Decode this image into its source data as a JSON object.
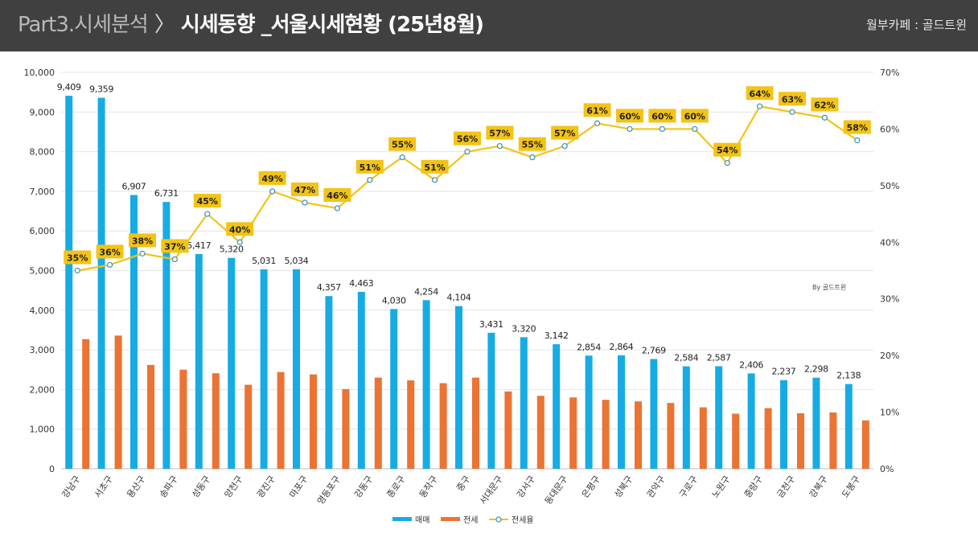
{
  "header": {
    "prefix": "Part3.시세분석",
    "separator": "〉",
    "title": "시세동향 _서울시세현황 (25년8월)",
    "source": "월부카페 : 골드트윈"
  },
  "colors": {
    "header_bg": "#404040",
    "sale": "#16ACE3",
    "jeonse": "#EB7333",
    "ratio_line": "#F3C316",
    "ratio_label_bg": "#F3C316",
    "grid": "#e4e4e4"
  },
  "chart_data": {
    "type": "bar",
    "categories": [
      "강남구",
      "서초구",
      "용산구",
      "송파구",
      "성동구",
      "양천구",
      "광진구",
      "마포구",
      "영등포구",
      "강동구",
      "종로구",
      "동작구",
      "중구",
      "서대문구",
      "강서구",
      "동대문구",
      "은평구",
      "성북구",
      "관악구",
      "구로구",
      "노원구",
      "중랑구",
      "금천구",
      "강북구",
      "도봉구"
    ],
    "series": [
      {
        "name": "매매",
        "type": "bar",
        "axis": "left",
        "color": "#16ACE3",
        "values": [
          9409,
          9359,
          6907,
          6731,
          5417,
          5320,
          5031,
          5034,
          4357,
          4463,
          4030,
          4254,
          4104,
          3431,
          3320,
          3142,
          2854,
          2864,
          2769,
          2584,
          2587,
          2406,
          2237,
          2298,
          2138
        ],
        "labels": [
          "9,409",
          "9,359",
          "6,907",
          "6,731",
          "5,417",
          "5,320",
          "5,031",
          "5,034",
          "4,357",
          "4,463",
          "4,030",
          "4,254",
          "4,104",
          "3,431",
          "3,320",
          "3,142",
          "2,854",
          "2,864",
          "2,769",
          "2,584",
          "2,587",
          "2,406",
          "2,237",
          "2,298",
          "2,138"
        ]
      },
      {
        "name": "전세",
        "type": "bar",
        "axis": "left",
        "color": "#EB7333",
        "values": [
          3270,
          3360,
          2620,
          2500,
          2410,
          2120,
          2440,
          2380,
          2010,
          2300,
          2230,
          2160,
          2300,
          1950,
          1840,
          1800,
          1740,
          1700,
          1660,
          1550,
          1390,
          1530,
          1400,
          1420,
          1220
        ]
      },
      {
        "name": "전세율",
        "type": "line",
        "axis": "right",
        "color": "#F3C316",
        "values": [
          35,
          36,
          38,
          37,
          45,
          40,
          49,
          47,
          46,
          51,
          55,
          51,
          56,
          57,
          55,
          57,
          61,
          60,
          60,
          60,
          54,
          64,
          63,
          62,
          58
        ],
        "labels": [
          "35%",
          "36%",
          "38%",
          "37%",
          "45%",
          "40%",
          "49%",
          "47%",
          "46%",
          "51%",
          "55%",
          "51%",
          "56%",
          "57%",
          "55%",
          "57%",
          "61%",
          "60%",
          "60%",
          "60%",
          "54%",
          "64%",
          "63%",
          "62%",
          "58%"
        ]
      }
    ],
    "left_axis": {
      "min": 0,
      "max": 10000,
      "ticks": [
        "0",
        "1,000",
        "2,000",
        "3,000",
        "4,000",
        "5,000",
        "6,000",
        "7,000",
        "8,000",
        "9,000",
        "10,000"
      ]
    },
    "right_axis": {
      "min": 0,
      "max": 70,
      "ticks": [
        "0%",
        "10%",
        "20%",
        "30%",
        "40%",
        "50%",
        "60%",
        "70%"
      ]
    },
    "legend": {
      "position": "bottom",
      "items": [
        "매매",
        "전세",
        "전세율"
      ]
    },
    "watermark": "By 골드트윈",
    "grid": true
  }
}
